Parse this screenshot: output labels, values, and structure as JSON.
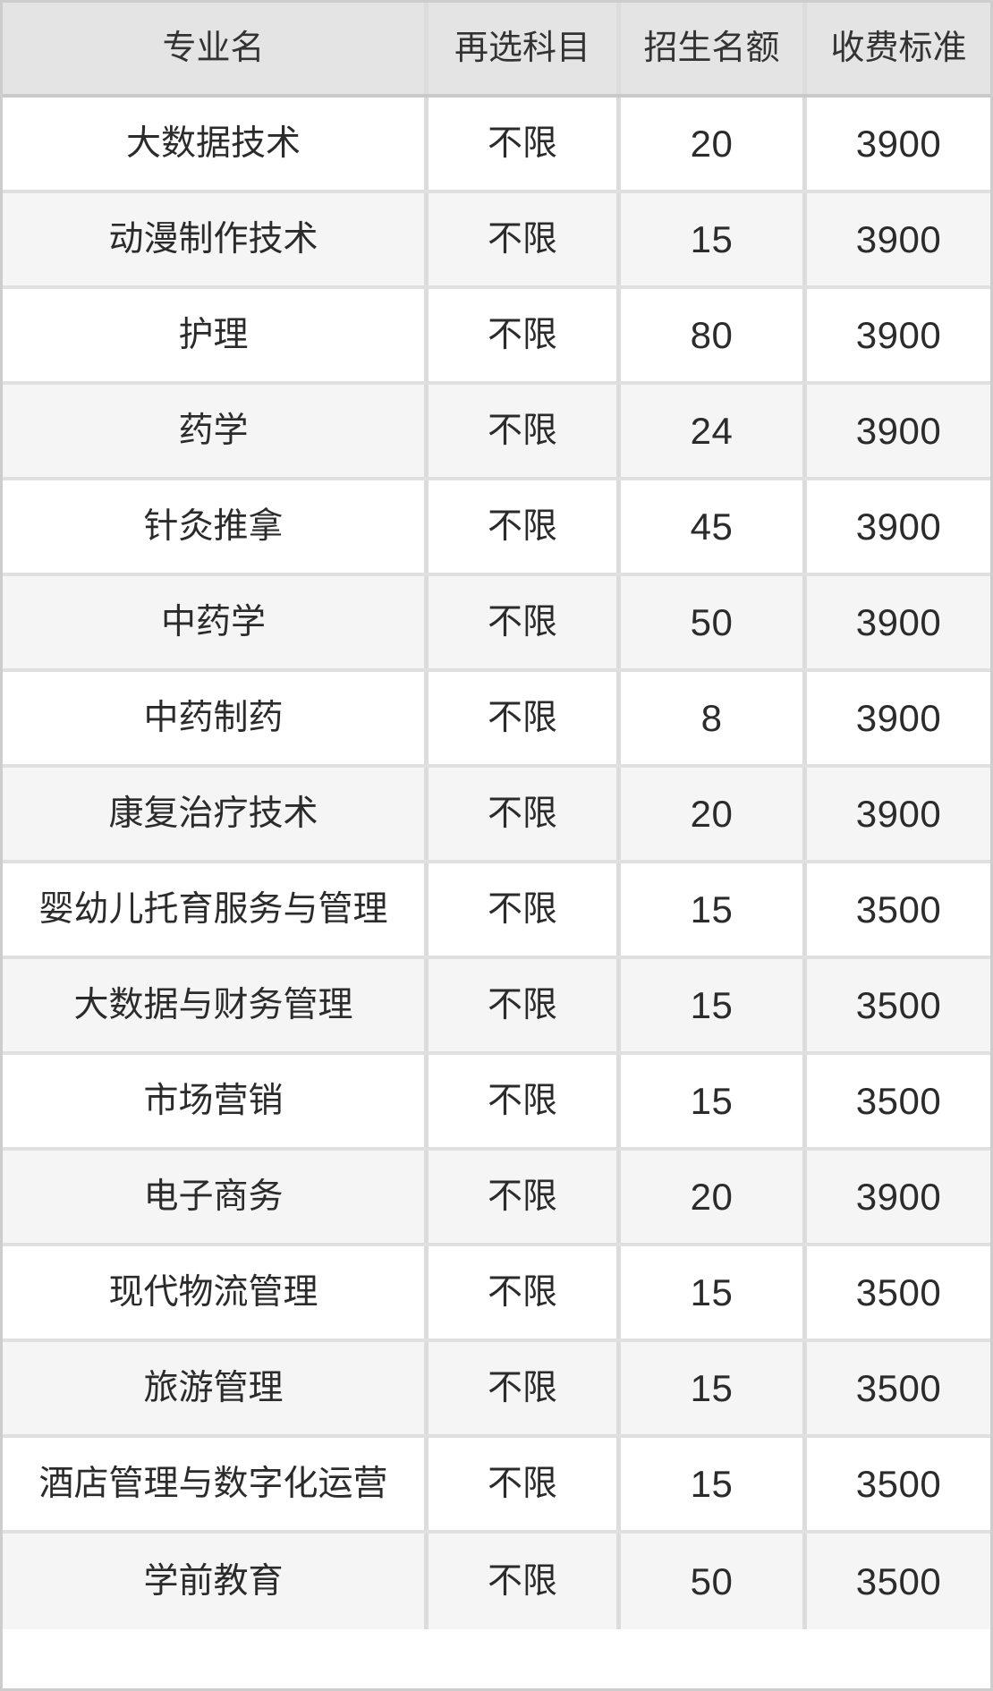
{
  "chart_data": {
    "type": "table",
    "title": "",
    "columns": [
      "专业名",
      "再选科目",
      "招生名额",
      "收费标准"
    ],
    "rows": [
      [
        "大数据技术",
        "不限",
        20,
        3900
      ],
      [
        "动漫制作技术",
        "不限",
        15,
        3900
      ],
      [
        "护理",
        "不限",
        80,
        3900
      ],
      [
        "药学",
        "不限",
        24,
        3900
      ],
      [
        "针灸推拿",
        "不限",
        45,
        3900
      ],
      [
        "中药学",
        "不限",
        50,
        3900
      ],
      [
        "中药制药",
        "不限",
        8,
        3900
      ],
      [
        "康复治疗技术",
        "不限",
        20,
        3900
      ],
      [
        "婴幼儿托育服务与管理",
        "不限",
        15,
        3500
      ],
      [
        "大数据与财务管理",
        "不限",
        15,
        3500
      ],
      [
        "市场营销",
        "不限",
        15,
        3500
      ],
      [
        "电子商务",
        "不限",
        20,
        3900
      ],
      [
        "现代物流管理",
        "不限",
        15,
        3500
      ],
      [
        "旅游管理",
        "不限",
        15,
        3500
      ],
      [
        "酒店管理与数字化运营",
        "不限",
        15,
        3500
      ],
      [
        "学前教育",
        "不限",
        50,
        3500
      ]
    ],
    "layout": {
      "legend": "none",
      "grid": "on",
      "zebra_striping": true,
      "header_position": "top"
    }
  },
  "styles": {
    "header_bg": "#e4e4e4",
    "row_bg_odd": "#ffffff",
    "row_bg_even": "#f5f5f5",
    "divider_vertical": "#dcdcdc",
    "divider_horizontal": "#e0e0e0",
    "header_divider": "#c9c9c9",
    "outer_border": "#cdcdcd",
    "text_color": "#2b2b2b",
    "page_bg": "#ffffff"
  }
}
